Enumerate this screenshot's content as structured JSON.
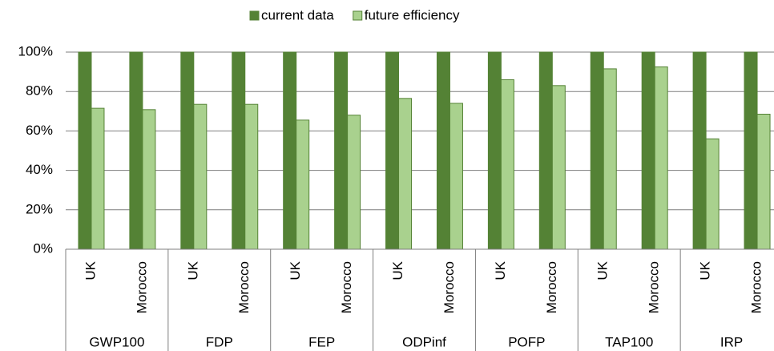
{
  "chart_data": {
    "type": "bar",
    "categories": [
      "UK",
      "Morocco",
      "UK",
      "Morocco",
      "UK",
      "Morocco",
      "UK",
      "Morocco",
      "UK",
      "Morocco",
      "UK",
      "Morocco",
      "UK",
      "Morocco"
    ],
    "groups": [
      "GWP100",
      "FDP",
      "FEP",
      "ODPinf",
      "POFP",
      "TAP100",
      "IRP"
    ],
    "series": [
      {
        "name": "current data",
        "color": "#548235",
        "values": [
          100,
          100,
          100,
          100,
          100,
          100,
          100,
          100,
          100,
          100,
          100,
          100,
          100,
          100
        ]
      },
      {
        "name": "future efficiency",
        "color": "#a9d18e",
        "values": [
          71.5,
          70.8,
          73.5,
          73.5,
          65.5,
          68,
          76.5,
          74,
          86,
          83,
          91.5,
          92.5,
          56,
          68.5
        ]
      }
    ],
    "ylim": [
      0,
      100
    ],
    "yticks": [
      {
        "value": 0,
        "label": "0%"
      },
      {
        "value": 20,
        "label": "20%"
      },
      {
        "value": 40,
        "label": "40%"
      },
      {
        "value": 60,
        "label": "60%"
      },
      {
        "value": 80,
        "label": "80%"
      },
      {
        "value": 100,
        "label": "100%"
      }
    ],
    "grid": true,
    "legend": "top"
  }
}
